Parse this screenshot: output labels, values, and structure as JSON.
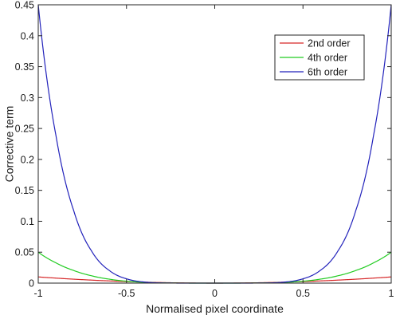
{
  "chart_data": {
    "type": "line",
    "title": "",
    "xlabel": "Normalised pixel coordinate",
    "ylabel": "Corrective term",
    "xlim": [
      -1,
      1
    ],
    "ylim": [
      0,
      0.45
    ],
    "xticks": [
      -1,
      -0.5,
      0,
      0.5,
      1
    ],
    "xtick_labels": [
      "-1",
      "-0.5",
      "0",
      "0.5",
      "1"
    ],
    "yticks": [
      0,
      0.05,
      0.1,
      0.15,
      0.2,
      0.25,
      0.3,
      0.35,
      0.4,
      0.45
    ],
    "ytick_labels": [
      "0",
      "0.05",
      "0.1",
      "0.15",
      "0.2",
      "0.25",
      "0.3",
      "0.35",
      "0.4",
      "0.45"
    ],
    "grid": false,
    "legend_position": "top-right",
    "x": [
      -1,
      -0.9,
      -0.8,
      -0.7,
      -0.6,
      -0.5,
      -0.4,
      -0.3,
      -0.2,
      -0.1,
      0,
      0.1,
      0.2,
      0.3,
      0.4,
      0.5,
      0.6,
      0.7,
      0.8,
      0.9,
      1
    ],
    "series": [
      {
        "name": "2nd order",
        "color": "#d62728",
        "values": [
          0.01,
          0.0081,
          0.0064,
          0.0049,
          0.0036,
          0.0025,
          0.0016,
          0.0009,
          0.0004,
          0.0001,
          0,
          0.0001,
          0.0004,
          0.0009,
          0.0016,
          0.0025,
          0.0036,
          0.0049,
          0.0064,
          0.0081,
          0.01
        ]
      },
      {
        "name": "4th order",
        "color": "#22cc22",
        "values": [
          0.05,
          0.0328,
          0.0205,
          0.012,
          0.0065,
          0.0031,
          0.0013,
          0.0004,
          0.0001,
          0,
          0,
          0,
          0.0001,
          0.0004,
          0.0013,
          0.0031,
          0.0065,
          0.012,
          0.0205,
          0.0328,
          0.05
        ]
      },
      {
        "name": "6th order",
        "color": "#2222bb",
        "values": [
          0.45,
          0.2391,
          0.118,
          0.0529,
          0.021,
          0.007,
          0.0018,
          0.0003,
          0,
          0,
          0,
          0,
          0,
          0.0003,
          0.0018,
          0.007,
          0.021,
          0.0529,
          0.118,
          0.2391,
          0.45
        ]
      }
    ]
  }
}
